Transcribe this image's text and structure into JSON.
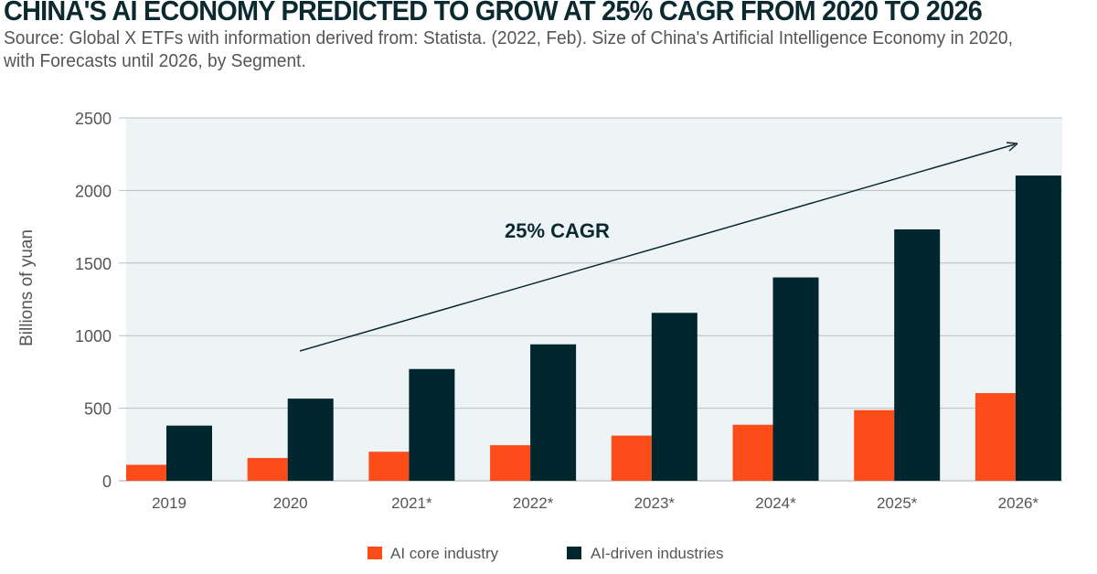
{
  "chart_data": {
    "type": "bar",
    "title": "CHINA'S AI ECONOMY PREDICTED TO GROW AT 25% CAGR FROM 2020 TO 2026",
    "subtitle": "Source: Global X ETFs with information derived from: Statista. (2022, Feb). Size of China's Artificial Intelligence Economy in 2020, with Forecasts until 2026, by Segment.",
    "ylabel": "Billions of yuan",
    "xlabel": "",
    "ylim": [
      0,
      2500
    ],
    "yticks": [
      0,
      500,
      1000,
      1500,
      2000,
      2500
    ],
    "grid": true,
    "legend_position": "bottom",
    "categories": [
      "2019",
      "2020",
      "2021*",
      "2022*",
      "2023*",
      "2024*",
      "2025*",
      "2026*"
    ],
    "series": [
      {
        "name": "AI core industry",
        "color": "#fc4c1a",
        "values": [
          110,
          157,
          200,
          245,
          311,
          386,
          487,
          604
        ]
      },
      {
        "name": "AI-driven industries",
        "color": "#00262e",
        "values": [
          380,
          566,
          770,
          940,
          1157,
          1401,
          1732,
          2103
        ]
      }
    ],
    "annotation": "25% CAGR",
    "plot_background": "#eef4f6"
  }
}
